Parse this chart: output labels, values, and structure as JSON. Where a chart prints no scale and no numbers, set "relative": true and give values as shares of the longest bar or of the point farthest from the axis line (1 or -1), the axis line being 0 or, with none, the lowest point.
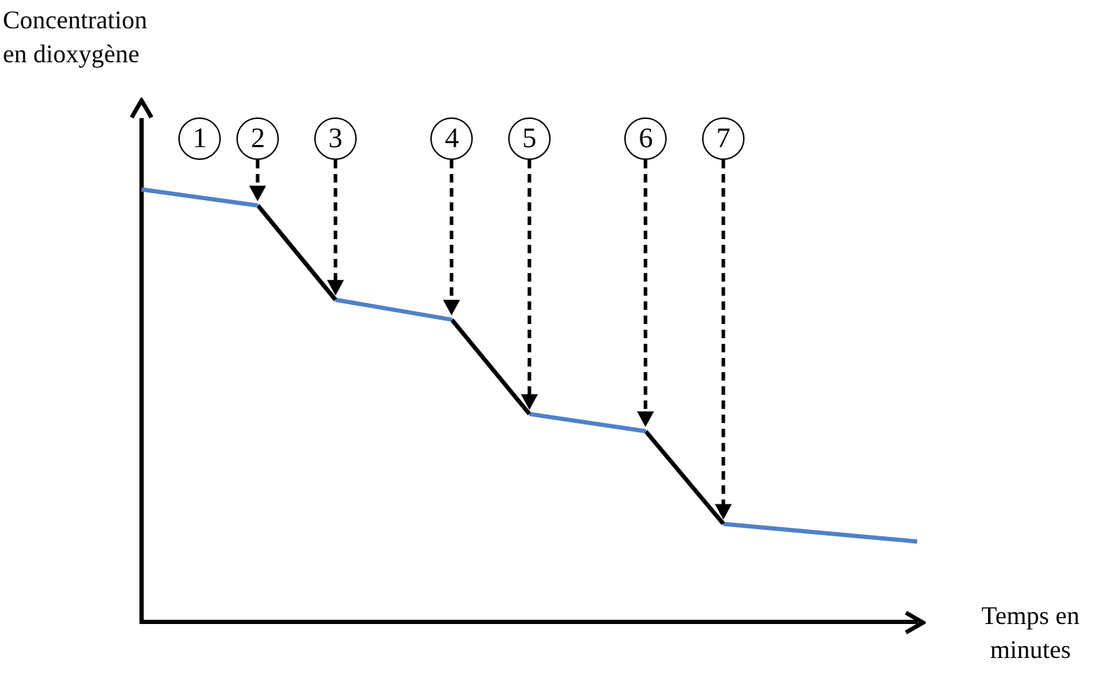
{
  "chart_data": {
    "type": "line",
    "relative": true,
    "xlabel": "Temps en minutes",
    "ylabel": "Concentration en dioxygène",
    "categories": [
      null,
      null,
      null,
      null,
      null,
      null,
      null,
      null,
      null,
      null,
      null,
      null,
      null,
      null,
      null,
      null,
      null,
      null,
      null,
      null,
      null
    ],
    "series": [
      {
        "color": "#4f81c7",
        "values": [
          1,
          null,
          null,
          0.963,
          null,
          null,
          null,
          null,
          null,
          null,
          null,
          null,
          null,
          null,
          null,
          null,
          null,
          null,
          null,
          null,
          null
        ]
      },
      {
        "color": "#000000",
        "values": [
          null,
          null,
          null,
          0.963,
          null,
          0.745,
          null,
          null,
          null,
          null,
          null,
          null,
          null,
          null,
          null,
          null,
          null,
          null,
          null,
          null,
          null
        ]
      },
      {
        "color": "#4f81c7",
        "values": [
          null,
          null,
          null,
          null,
          null,
          0.745,
          null,
          null,
          0.699,
          null,
          null,
          null,
          null,
          null,
          null,
          null,
          null,
          null,
          null,
          null,
          null
        ]
      },
      {
        "color": "#000000",
        "values": [
          null,
          null,
          null,
          null,
          null,
          null,
          null,
          null,
          0.699,
          null,
          0.481,
          null,
          null,
          null,
          null,
          null,
          null,
          null,
          null,
          null,
          null
        ]
      },
      {
        "color": "#4f81c7",
        "values": [
          null,
          null,
          null,
          null,
          null,
          null,
          null,
          null,
          null,
          null,
          0.481,
          null,
          null,
          0.441,
          null,
          null,
          null,
          null,
          null,
          null,
          null
        ]
      },
      {
        "color": "#000000",
        "values": [
          null,
          null,
          null,
          null,
          null,
          null,
          null,
          null,
          null,
          null,
          null,
          null,
          null,
          0.441,
          null,
          0.227,
          null,
          null,
          null,
          null,
          null
        ]
      },
      {
        "color": "#4f81c7",
        "values": [
          null,
          null,
          null,
          null,
          null,
          null,
          null,
          null,
          null,
          null,
          null,
          null,
          null,
          null,
          null,
          0.227,
          null,
          null,
          null,
          null,
          0.186
        ]
      }
    ],
    "annotations": [
      "1",
      "2",
      "3",
      "4",
      "5",
      "6",
      "7"
    ],
    "marker": "none",
    "line_style": "solid",
    "legend": false,
    "grid": false
  }
}
